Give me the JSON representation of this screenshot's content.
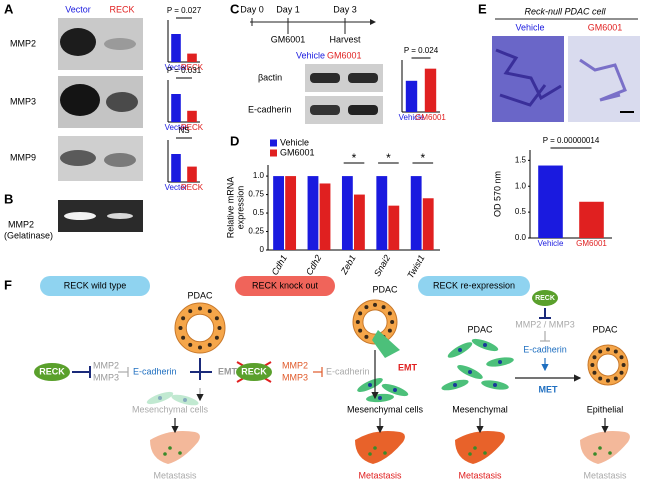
{
  "chart_data": [
    {
      "type": "bar",
      "categories": [
        "Vector",
        "RECK"
      ],
      "values": [
        1.0,
        0.3
      ],
      "colors": [
        "#1a1adf",
        "#e02020"
      ],
      "ylim": [
        0,
        1.5
      ],
      "annotation": "P = 0.027"
    },
    {
      "type": "bar",
      "categories": [
        "Vector",
        "RECK"
      ],
      "values": [
        1.0,
        0.4
      ],
      "colors": [
        "#1a1adf",
        "#e02020"
      ],
      "ylim": [
        0,
        1.5
      ],
      "annotation": "P = 0.031"
    },
    {
      "type": "bar",
      "categories": [
        "Vector",
        "RECK"
      ],
      "values": [
        1.0,
        0.55
      ],
      "colors": [
        "#1a1adf",
        "#e02020"
      ],
      "ylim": [
        0,
        1.5
      ],
      "annotation": "NS"
    },
    {
      "type": "bar",
      "categories": [
        "Vehicle",
        "GM6001"
      ],
      "values": [
        0.9,
        1.25
      ],
      "colors": [
        "#1a1adf",
        "#e02020"
      ],
      "ylim": [
        0,
        1.5
      ],
      "annotation": "P = 0.024"
    },
    {
      "type": "bar",
      "categories": [
        "Cdh1",
        "Cdh2",
        "Zeb1",
        "Snai2",
        "Twist1"
      ],
      "series": [
        {
          "name": "Vehicle",
          "color": "#1a1adf",
          "values": [
            1.0,
            1.0,
            1.0,
            1.0,
            1.0
          ]
        },
        {
          "name": "GM6001",
          "color": "#e02020",
          "values": [
            1.0,
            0.9,
            0.75,
            0.6,
            0.7
          ]
        }
      ],
      "ylim": [
        0,
        1.15
      ],
      "yticks": [
        0,
        0.25,
        0.5,
        0.75,
        {
          "value": 1,
          "label": "1.0"
        }
      ],
      "ylabel": [
        "Relative mRNA",
        "expression"
      ],
      "annotations": [
        {
          "category": "Zeb1",
          "text": "*"
        },
        {
          "category": "Snai2",
          "text": "*"
        },
        {
          "category": "Twist1",
          "text": "*"
        }
      ]
    },
    {
      "type": "bar",
      "categories": [
        "Vehicle",
        "GM6001"
      ],
      "values": [
        1.4,
        0.7
      ],
      "colors": [
        "#1a1adf",
        "#e02020"
      ],
      "ylim": [
        0,
        1.7
      ],
      "yticks": [
        {
          "value": 0,
          "label": "0.0"
        },
        0.5,
        {
          "value": 1,
          "label": "1.0"
        },
        1.5
      ],
      "ylabel": "OD 570 nm",
      "annotation": "P = 0.00000014"
    }
  ],
  "figure": {
    "panel_labels": [
      "A",
      "B",
      "C",
      "D",
      "E",
      "F"
    ],
    "a": {
      "lanes": [
        "Vector",
        "RECK"
      ],
      "blots": [
        "MMP2",
        "MMP3",
        "MMP9"
      ]
    },
    "b": {
      "label": [
        "MMP2",
        "(Gelatinase)"
      ]
    },
    "c": {
      "timeline": [
        "Day 0",
        "Day 1",
        "Day 3"
      ],
      "events": [
        "GM6001",
        "Harvest"
      ],
      "lanes": [
        "Vehicle",
        "GM6001"
      ],
      "blots": [
        "βactin",
        "E-cadherin"
      ]
    },
    "e": {
      "title": "Reck-null PDAC cell",
      "images": [
        "Vehicle",
        "GM6001"
      ]
    },
    "f": {
      "states": [
        "RECK wild type",
        "RECK knock out",
        "RECK re-expression"
      ],
      "wild": {
        "pdac": "PDAC",
        "reck": "RECK",
        "mmp": [
          "MMP2",
          "MMP3"
        ],
        "ecad": "E-cadherin",
        "emt": "EMT",
        "cells": "Mesenchymal cells",
        "met": "Metastasis"
      },
      "ko": {
        "pdac": "PDAC",
        "reck": "RECK",
        "mmp": [
          "MMP2",
          "MMP3"
        ],
        "ecad": "E-cadherin",
        "emt": "EMT",
        "cells": "Mesenchymal cells",
        "met": "Metastasis"
      },
      "mes": {
        "pdac": "PDAC",
        "cells": "Mesenchymal",
        "met": "Metastasis"
      },
      "re": {
        "reck": "RECK",
        "mmp": "MMP2 / MMP3",
        "ecad": "E-cadherin",
        "met_label": "MET",
        "pdac": "PDAC",
        "cells": "Epithelial",
        "met": "Metastasis"
      }
    }
  }
}
